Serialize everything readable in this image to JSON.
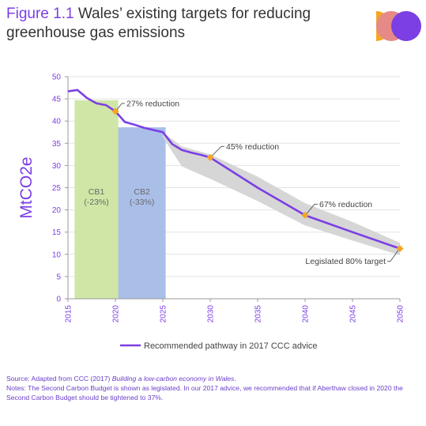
{
  "header": {
    "figure_label": "Figure 1.1",
    "title": "Wales’ existing targets for reducing greenhouse gas emissions"
  },
  "colors": {
    "accent": "#7b3fe4",
    "cb1_fill": "#cfe6a6",
    "cb2_fill": "#aabfe8",
    "range_band": "#d6d6d6",
    "milestone_marker": "#f5a623",
    "logo_orange": "#f5a623",
    "logo_pink": "#e58a86",
    "logo_purple": "#7b3fe4"
  },
  "chart_data": {
    "type": "line",
    "title": "",
    "xlabel": "",
    "ylabel": "MtCO2e",
    "xlim": [
      2015,
      2050
    ],
    "ylim": [
      0,
      50
    ],
    "x_ticks": [
      2015,
      2020,
      2025,
      2030,
      2035,
      2040,
      2045,
      2050
    ],
    "y_ticks": [
      0,
      5,
      10,
      15,
      20,
      25,
      30,
      35,
      40,
      45,
      50
    ],
    "grid": true,
    "legend": {
      "position": "bottom",
      "label": "Recommended pathway in 2017 CCC advice"
    },
    "budgets": [
      {
        "label": "CB1",
        "sublabel": "(-23%)",
        "start": 2015.7,
        "end": 2020.3,
        "value": 44.7
      },
      {
        "label": "CB2",
        "sublabel": "(-33%)",
        "start": 2020.3,
        "end": 2025.3,
        "value": 38.6
      }
    ],
    "series": [
      {
        "x": [
          2015,
          2016,
          2017,
          2018,
          2019,
          2020,
          2021,
          2022,
          2023,
          2024,
          2025,
          2026,
          2027,
          2028,
          2029,
          2030,
          2035,
          2040,
          2045,
          2050
        ],
        "values": [
          46.7,
          47.0,
          45.2,
          44.0,
          43.6,
          42.2,
          39.8,
          39.2,
          38.5,
          38.0,
          37.5,
          34.8,
          33.5,
          32.9,
          32.4,
          31.8,
          25.0,
          18.8,
          15.0,
          11.3
        ]
      }
    ],
    "range_band": {
      "x": [
        2025,
        2027,
        2030,
        2035,
        2040,
        2045,
        2050
      ],
      "upper": [
        37.5,
        34.3,
        32.5,
        27.5,
        21.5,
        17.3,
        12.6
      ],
      "lower": [
        36.4,
        29.8,
        27.0,
        22.0,
        16.5,
        13.1,
        9.8
      ]
    },
    "annotations": [
      {
        "x": 2020,
        "y": 42.2,
        "text": "27% reduction"
      },
      {
        "x": 2030,
        "y": 31.8,
        "text": "45% reduction"
      },
      {
        "x": 2040,
        "y": 18.8,
        "text": "67% reduction"
      },
      {
        "x": 2050,
        "y": 11.3,
        "text": "Legislated 80% target"
      }
    ]
  },
  "notes": {
    "source_prefix": "Source: Adapted from CCC (2017) ",
    "source_title": "Building a low-carbon economy in Wales",
    "source_suffix": ".",
    "note": "Notes: The Second Carbon Budget is shown as legislated. In our 2017 advice, we recommended that if Aberthaw closed in 2020 the Second Carbon Budget should be tightened to 37%."
  }
}
